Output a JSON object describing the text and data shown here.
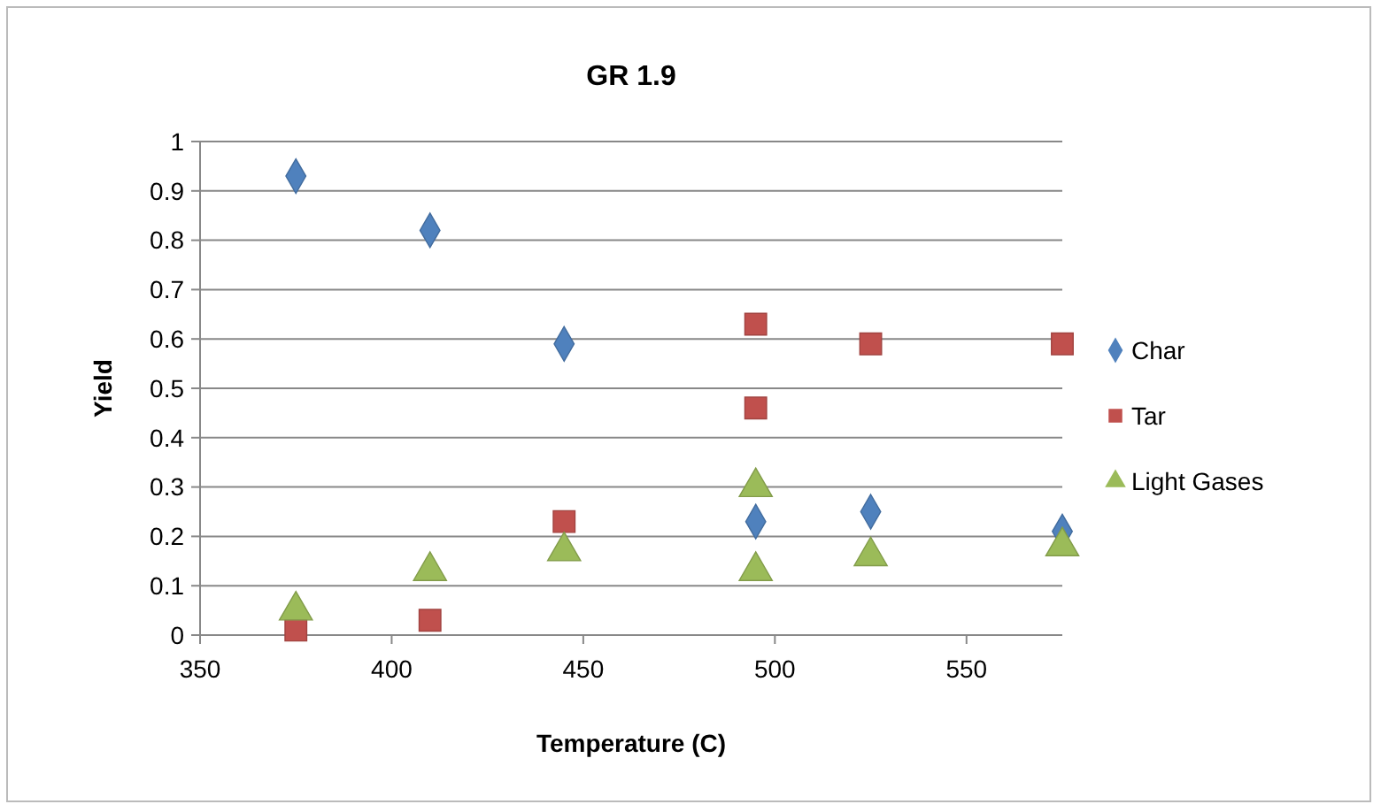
{
  "chart_data": {
    "type": "scatter",
    "title": "GR 1.9",
    "xlabel": "Temperature (C)",
    "ylabel": "Yield",
    "xlim": [
      350,
      575
    ],
    "xticks": [
      350,
      400,
      450,
      500,
      550
    ],
    "ylim": [
      0,
      1
    ],
    "yticks": [
      0,
      0.1,
      0.2,
      0.3,
      0.4,
      0.5,
      0.6,
      0.7,
      0.8,
      0.9,
      1
    ],
    "grid": "y",
    "legend": "right",
    "series": [
      {
        "name": "Char",
        "color": "#4f81bd",
        "marker": "diamond",
        "x": [
          375,
          410,
          445,
          495,
          525,
          575
        ],
        "values": [
          0.93,
          0.82,
          0.59,
          0.23,
          0.25,
          0.21
        ]
      },
      {
        "name": "Tar",
        "color": "#c0504d",
        "marker": "square",
        "x": [
          375,
          410,
          445,
          495,
          495,
          525,
          575
        ],
        "values": [
          0.01,
          0.03,
          0.23,
          0.63,
          0.46,
          0.59,
          0.59
        ]
      },
      {
        "name": "Light Gases",
        "color": "#9bbb59",
        "marker": "triangle",
        "x": [
          375,
          410,
          445,
          495,
          495,
          525,
          575
        ],
        "values": [
          0.05,
          0.13,
          0.17,
          0.3,
          0.13,
          0.16,
          0.18
        ]
      }
    ]
  }
}
